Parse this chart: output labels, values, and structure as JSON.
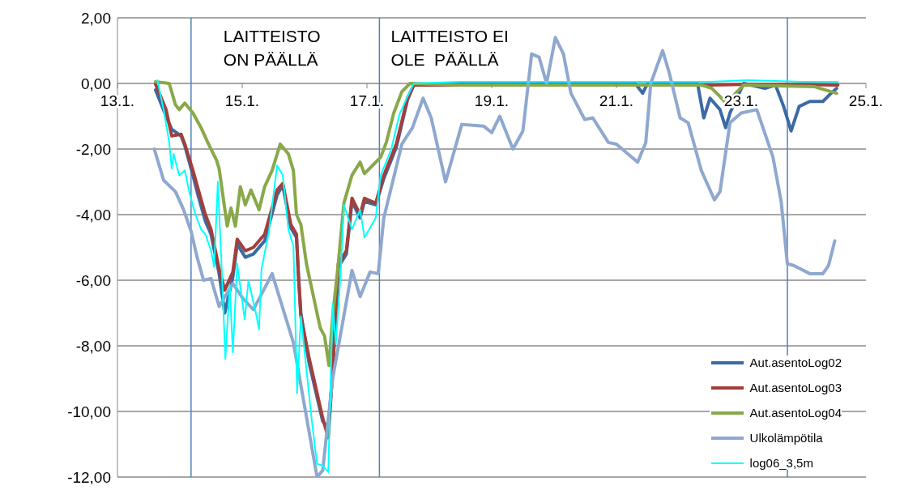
{
  "chart_data": {
    "type": "line",
    "xlim": [
      "--01-13",
      "--01-25"
    ],
    "ylim": [
      -12,
      2
    ],
    "xticks": [
      {
        "value": "--01-13",
        "label": "13.1."
      },
      {
        "value": "--01-15",
        "label": "15.1."
      },
      {
        "value": "--01-17",
        "label": "17.1."
      },
      {
        "value": "--01-19",
        "label": "19.1."
      },
      {
        "value": "--01-21",
        "label": "21.1."
      },
      {
        "value": "--01-23",
        "label": "23.1."
      },
      {
        "value": "--01-25",
        "label": "25.1."
      }
    ],
    "yticks": [
      {
        "value": -12,
        "label": "-12,00"
      },
      {
        "value": -10,
        "label": "-10,00"
      },
      {
        "value": -8,
        "label": "-8,00"
      },
      {
        "value": -6,
        "label": "-6,00"
      },
      {
        "value": -4,
        "label": "-4,00"
      },
      {
        "value": -2,
        "label": "-2,00"
      },
      {
        "value": 0,
        "label": "0,00"
      },
      {
        "value": 2,
        "label": "2,00"
      }
    ],
    "grid": "y",
    "legend": "bottom right",
    "marker": "none",
    "line_style": "solid",
    "ref_lines": [
      {
        "axis": "x",
        "value": "--01-14T04:19",
        "color": "#4f81bd"
      },
      {
        "axis": "x",
        "value": "--01-17T04:48",
        "color": "#4f81bd"
      },
      {
        "axis": "x",
        "value": "--01-23T17:46",
        "color": "#4f81bd"
      }
    ],
    "annotations": [
      "LAITTEISTO\nON PÄÄLLÄ",
      "LAITTEISTO EI\nOLE  PÄÄLLÄ"
    ],
    "series": [
      {
        "name": "Aut.asentoLog02",
        "color": "#3b6aa5",
        "x": [
          "--01-13T14:38",
          "--01-13T18:43",
          "--01-13T20:53",
          "--01-14T00:29",
          "--01-14T01:55",
          "--01-14T05:02",
          "--01-14T06:58",
          "--01-14T09:50",
          "--01-14T12:00",
          "--01-14T15:07",
          "--01-14T17:17",
          "--01-14T20:24",
          "--01-14T22:05",
          "--01-15T01:12",
          "--01-15T04:19",
          "--01-15T08:38",
          "--01-15T13:26",
          "--01-15T15:36",
          "--01-15T18:43",
          "--01-15T20:53",
          "--01-15T21:36",
          "--01-15T22:34",
          "--01-16T01:41",
          "--01-16T06:58",
          "--01-16T09:07",
          "--01-16T10:48",
          "--01-16T12:58",
          "--01-16T16:05",
          "--01-16T18:14",
          "--01-16T21:22",
          "--01-16T23:02",
          "--01-17T03:22",
          "--01-17T06:29",
          "--01-17T11:17",
          "--01-17T15:36",
          "--01-17T18:00",
          "--01-18T12:00",
          "--01-19T12:00",
          "--01-20T12:00",
          "--01-21T07:12",
          "--01-21T10:05",
          "--01-21T12:00",
          "--01-22T07:12",
          "--01-22T09:36",
          "--01-22T12:00",
          "--01-22T15:50",
          "--01-22T18:00",
          "--01-22T19:41",
          "--01-23T00:58",
          "--01-23T09:07",
          "--01-23T13:12",
          "--01-23T16:19",
          "--01-23T19:12",
          "--01-23T22:19",
          "--01-24T02:24",
          "--01-24T07:26",
          "--01-24T10:34",
          "--01-24T12:43"
        ],
        "values": [
          -0.2,
          -1.0,
          -1.4,
          -1.6,
          -1.9,
          -2.8,
          -3.4,
          -4.2,
          -4.6,
          -5.8,
          -7.0,
          -5.9,
          -4.9,
          -5.3,
          -5.2,
          -4.8,
          -3.4,
          -3.1,
          -4.4,
          -4.7,
          -5.8,
          -7.0,
          -8.5,
          -10.3,
          -10.5,
          -8.8,
          -5.6,
          -5.2,
          -3.6,
          -4.1,
          -3.6,
          -3.7,
          -2.9,
          -1.95,
          -0.5,
          -0.05,
          0.0,
          0.02,
          0.02,
          0.0,
          -0.3,
          0.0,
          0.0,
          -1.05,
          -0.45,
          -0.8,
          -1.35,
          -0.9,
          0.0,
          -0.15,
          -0.05,
          -0.7,
          -1.45,
          -0.7,
          -0.55,
          -0.55,
          -0.3,
          -0.15
        ]
      },
      {
        "name": "Aut.asentoLog03",
        "color": "#a33f3b",
        "x": [
          "--01-13T14:38",
          "--01-13T18:43",
          "--01-13T20:53",
          "--01-14T00:29",
          "--01-14T01:55",
          "--01-14T05:02",
          "--01-14T06:58",
          "--01-14T09:50",
          "--01-14T12:00",
          "--01-14T15:07",
          "--01-14T17:17",
          "--01-14T20:24",
          "--01-14T22:05",
          "--01-15T01:12",
          "--01-15T04:19",
          "--01-15T08:38",
          "--01-15T13:26",
          "--01-15T15:36",
          "--01-15T18:43",
          "--01-15T20:53",
          "--01-15T21:36",
          "--01-15T22:34",
          "--01-16T01:41",
          "--01-16T06:58",
          "--01-16T09:07",
          "--01-16T10:48",
          "--01-16T12:58",
          "--01-16T16:05",
          "--01-16T18:14",
          "--01-16T21:22",
          "--01-16T23:02",
          "--01-17T03:22",
          "--01-17T06:29",
          "--01-17T11:17",
          "--01-17T15:36",
          "--01-17T18:00",
          "--01-18T12:00",
          "--01-19T12:00",
          "--01-20T12:00",
          "--01-21T12:00",
          "--01-22T12:00",
          "--01-23T00:00",
          "--01-24T00:00",
          "--01-24T13:12"
        ],
        "values": [
          -0.02,
          -0.8,
          -1.6,
          -1.55,
          -1.85,
          -2.65,
          -3.2,
          -4.0,
          -4.45,
          -5.65,
          -6.3,
          -5.75,
          -4.75,
          -5.1,
          -5.0,
          -4.6,
          -3.25,
          -3.05,
          -4.3,
          -4.6,
          -5.8,
          -7.1,
          -8.35,
          -10.2,
          -10.8,
          -8.75,
          -5.5,
          -5.1,
          -3.5,
          -4.0,
          -3.5,
          -3.65,
          -2.8,
          -1.85,
          -0.45,
          -0.05,
          -0.05,
          -0.05,
          -0.05,
          -0.05,
          -0.05,
          -0.03,
          -0.03,
          -0.05
        ]
      },
      {
        "name": "Aut.asentoLog04",
        "color": "#89a84a",
        "x": [
          "--01-13T14:38",
          "--01-13T19:55",
          "--01-13T22:19",
          "--01-13T23:46",
          "--01-14T01:55",
          "--01-14T05:02",
          "--01-14T08:10",
          "--01-14T11:02",
          "--01-14T14:10",
          "--01-14T15:07",
          "--01-14T18:14",
          "--01-14T19:41",
          "--01-14T21:22",
          "--01-14T23:17",
          "--01-15T01:12",
          "--01-15T03:22",
          "--01-15T06:29",
          "--01-15T08:38",
          "--01-15T11:31",
          "--01-15T14:38",
          "--01-15T17:46",
          "--01-15T19:41",
          "--01-15T20:53",
          "--01-15T22:34",
          "--01-16T00:43",
          "--01-16T02:53",
          "--01-16T06:00",
          "--01-16T07:41",
          "--01-16T09:22",
          "--01-16T10:48",
          "--01-16T12:58",
          "--01-16T15:07",
          "--01-16T18:14",
          "--01-16T21:22",
          "--01-16T23:02",
          "--01-17T02:10",
          "--01-17T05:17",
          "--01-17T07:26",
          "--01-17T10:19",
          "--01-17T13:26",
          "--01-17T16:34",
          "--01-18T12:00",
          "--01-20T00:00",
          "--01-22T07:12",
          "--01-22T09:36",
          "--01-22T12:43",
          "--01-22T15:50",
          "--01-22T18:43",
          "--01-22T21:50",
          "--01-23T00:58",
          "--01-24T04:19",
          "--01-24T08:24",
          "--01-24T12:43"
        ],
        "values": [
          0.05,
          0.0,
          -0.65,
          -0.8,
          -0.6,
          -0.9,
          -1.35,
          -1.85,
          -2.35,
          -2.6,
          -4.35,
          -3.8,
          -4.35,
          -3.15,
          -3.7,
          -3.25,
          -3.85,
          -3.15,
          -2.65,
          -1.85,
          -2.15,
          -2.65,
          -4.0,
          -4.3,
          -5.5,
          -6.3,
          -7.45,
          -7.7,
          -8.6,
          -7.1,
          -5.5,
          -3.65,
          -2.8,
          -2.4,
          -2.75,
          -2.5,
          -2.25,
          -1.8,
          -0.9,
          -0.25,
          0.0,
          -0.05,
          -0.05,
          -0.05,
          -0.07,
          -0.15,
          -0.4,
          -0.65,
          -0.3,
          -0.05,
          -0.1,
          -0.2,
          -0.3
        ]
      },
      {
        "name": "Ulkolämpötila",
        "color": "#8fa8cf",
        "x": [
          "--01-13T14:10",
          "--01-13T17:46",
          "--01-13T22:19",
          "--01-14T01:26",
          "--01-14T04:19",
          "--01-14T06:29",
          "--01-14T09:07",
          "--01-14T12:00",
          "--01-14T15:07",
          "--01-14T20:24",
          "--01-15T00:14",
          "--01-15T04:19",
          "--01-15T11:31",
          "--01-15T19:41",
          "--01-16T04:48",
          "--01-16T06:58",
          "--01-16T10:48",
          "--01-16T18:14",
          "--01-16T21:22",
          "--01-17T01:12",
          "--01-17T04:19",
          "--01-17T06:29",
          "--01-17T13:26",
          "--01-17T17:31",
          "--01-17T21:36",
          "--01-18T00:43",
          "--01-18T06:14",
          "--01-18T12:29",
          "--01-18T20:53",
          "--01-19T00:00",
          "--01-19T03:07",
          "--01-19T08:10",
          "--01-19T12:00",
          "--01-19T15:22",
          "--01-19T18:14",
          "--01-19T21:07",
          "--01-20T00:29",
          "--01-20T03:36",
          "--01-20T06:29",
          "--01-20T11:46",
          "--01-20T14:53",
          "--01-20T20:53",
          "--01-21T00:00",
          "--01-21T08:10",
          "--01-21T11:17",
          "--01-21T13:12",
          "--01-21T17:46",
          "--01-21T20:24",
          "--01-22T00:29",
          "--01-22T03:36",
          "--01-22T08:38",
          "--01-22T13:41",
          "--01-22T15:50",
          "--01-22T19:41",
          "--01-23T00:00",
          "--01-23T06:00",
          "--01-23T12:14",
          "--01-23T15:22",
          "--01-23T17:46",
          "--01-23T20:10",
          "--01-24T02:24",
          "--01-24T07:26",
          "--01-24T09:36",
          "--01-24T12:00"
        ],
        "values": [
          -2.0,
          -2.95,
          -3.3,
          -3.85,
          -4.5,
          -5.25,
          -6.0,
          -5.95,
          -6.8,
          -6.1,
          -6.55,
          -6.9,
          -5.8,
          -7.9,
          -12.0,
          -11.8,
          -9.0,
          -5.7,
          -6.5,
          -5.75,
          -5.8,
          -4.1,
          -1.85,
          -1.35,
          -0.45,
          -1.05,
          -3.0,
          -1.25,
          -1.3,
          -1.5,
          -1.0,
          -2.0,
          -1.45,
          0.9,
          0.8,
          0.0,
          1.4,
          0.9,
          -0.3,
          -1.1,
          -1.05,
          -1.8,
          -1.85,
          -2.4,
          -1.8,
          0.0,
          1.0,
          0.3,
          -1.05,
          -1.2,
          -2.65,
          -3.55,
          -3.3,
          -1.2,
          -0.9,
          -0.8,
          -2.25,
          -3.6,
          -5.5,
          -5.55,
          -5.8,
          -5.8,
          -5.55,
          -4.8
        ]
      },
      {
        "name": "log06_3,5m",
        "color": "#00ffff",
        "x": [
          "--01-13T15:22",
          "--01-13T17:46",
          "--01-13T19:55",
          "--01-13T20:53",
          "--01-13T21:36",
          "--01-13T23:46",
          "--01-14T01:55",
          "--01-14T03:36",
          "--01-14T06:00",
          "--01-14T08:10",
          "--01-14T09:50",
          "--01-14T12:00",
          "--01-14T13:12",
          "--01-14T14:38",
          "--01-14T16:19",
          "--01-14T17:31",
          "--01-14T19:12",
          "--01-14T20:24",
          "--01-14T22:05",
          "--01-15T00:58",
          "--01-15T02:24",
          "--01-15T05:31",
          "--01-15T06:29",
          "--01-15T07:26",
          "--01-15T10:19",
          "--01-15T13:26",
          "--01-15T15:36",
          "--01-15T17:46",
          "--01-15T19:41",
          "--01-15T20:10",
          "--01-15T21:07",
          "--01-15T22:34",
          "--01-16T02:53",
          "--01-16T04:48",
          "--01-16T06:58",
          "--01-16T09:07",
          "--01-16T10:48",
          "--01-16T12:00",
          "--01-16T13:55",
          "--01-16T15:07",
          "--01-16T18:14",
          "--01-16T21:22",
          "--01-16T23:02",
          "--01-17T03:22",
          "--01-17T05:17",
          "--01-17T09:22",
          "--01-17T12:29",
          "--01-17T15:36",
          "--01-17T18:00",
          "--01-18T12:00",
          "--01-19T12:00",
          "--01-20T12:00",
          "--01-21T12:00",
          "--01-22T12:00",
          "--01-23T02:24",
          "--01-24T00:00",
          "--01-24T13:12"
        ],
        "values": [
          0.1,
          -0.8,
          -1.8,
          -2.6,
          -2.15,
          -2.8,
          -2.65,
          -3.3,
          -4.0,
          -4.45,
          -4.6,
          -5.1,
          -5.6,
          -3.0,
          -6.0,
          -8.4,
          -6.15,
          -8.2,
          -5.5,
          -7.2,
          -6.0,
          -7.1,
          -7.5,
          -5.65,
          -4.5,
          -2.5,
          -2.8,
          -4.45,
          -4.95,
          -6.3,
          -9.45,
          -7.1,
          -10.35,
          -11.6,
          -11.65,
          -11.85,
          -6.7,
          -7.95,
          -5.75,
          -3.7,
          -4.45,
          -3.85,
          -4.7,
          -4.1,
          -2.8,
          -2.0,
          -0.95,
          -0.4,
          0.0,
          0.05,
          0.05,
          0.05,
          0.05,
          0.05,
          0.1,
          0.05,
          0.05
        ]
      }
    ]
  }
}
